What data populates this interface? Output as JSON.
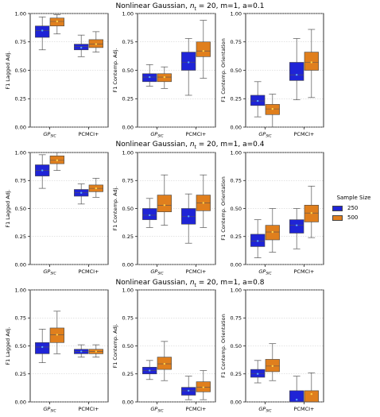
{
  "legend": {
    "title": "Sample Size",
    "items": [
      {
        "label": "250",
        "color": "#1f24d6"
      },
      {
        "label": "500",
        "color": "#e07f1d"
      }
    ]
  },
  "chart_data": {
    "type": "box",
    "series_names": [
      "250",
      "500"
    ],
    "series_colors": [
      "#1f24d6",
      "#e07f1d"
    ],
    "categories": [
      "GP_SIC",
      "PCMCI+"
    ],
    "category_labels": [
      {
        "main": "GP",
        "sub": "SIC"
      },
      {
        "main": "PCMCI+",
        "sub": ""
      }
    ],
    "y_ticks": [
      "0.00",
      "0.25",
      "0.50",
      "0.75",
      "1.00"
    ],
    "ylim": [
      0,
      1
    ],
    "grid": "horizontal dotted",
    "rows": [
      {
        "title_prefix": "Nonlinear Gaussian, ",
        "title_sub": "t",
        "title_suffix": " = 20, m=1, a=0.1",
        "panels": [
          {
            "ylabel": "F1 Lagged Adj.",
            "boxes": [
              {
                "category": "GP_SIC",
                "series": "250",
                "whislo": 0.68,
                "q1": 0.79,
                "med": 0.85,
                "mean": 0.85,
                "q3": 0.89,
                "whishi": 0.97
              },
              {
                "category": "GP_SIC",
                "series": "500",
                "whislo": 0.82,
                "q1": 0.89,
                "med": 0.93,
                "mean": 0.93,
                "q3": 0.96,
                "whishi": 0.99
              },
              {
                "category": "PCMCI+",
                "series": "250",
                "whislo": 0.62,
                "q1": 0.68,
                "med": 0.71,
                "mean": 0.7,
                "q3": 0.73,
                "whishi": 0.81
              },
              {
                "category": "PCMCI+",
                "series": "500",
                "whislo": 0.66,
                "q1": 0.7,
                "med": 0.73,
                "mean": 0.73,
                "q3": 0.77,
                "whishi": 0.84
              }
            ]
          },
          {
            "ylabel": "F1 Contemp. Adj.",
            "boxes": [
              {
                "category": "GP_SIC",
                "series": "250",
                "whislo": 0.36,
                "q1": 0.4,
                "med": 0.44,
                "mean": 0.44,
                "q3": 0.47,
                "whishi": 0.55
              },
              {
                "category": "GP_SIC",
                "series": "500",
                "whislo": 0.34,
                "q1": 0.4,
                "med": 0.44,
                "mean": 0.44,
                "q3": 0.47,
                "whishi": 0.53
              },
              {
                "category": "PCMCI+",
                "series": "250",
                "whislo": 0.28,
                "q1": 0.5,
                "med": 0.57,
                "mean": 0.57,
                "q3": 0.66,
                "whishi": 0.78
              },
              {
                "category": "PCMCI+",
                "series": "500",
                "whislo": 0.43,
                "q1": 0.62,
                "med": 0.67,
                "mean": 0.67,
                "q3": 0.75,
                "whishi": 0.94
              }
            ]
          },
          {
            "ylabel": "F1 Contemp. Orientation",
            "boxes": [
              {
                "category": "GP_SIC",
                "series": "250",
                "whislo": 0.09,
                "q1": 0.19,
                "med": 0.23,
                "mean": 0.23,
                "q3": 0.28,
                "whishi": 0.4
              },
              {
                "category": "GP_SIC",
                "series": "500",
                "whislo": 0.0,
                "q1": 0.11,
                "med": 0.16,
                "mean": 0.16,
                "q3": 0.2,
                "whishi": 0.29
              },
              {
                "category": "PCMCI+",
                "series": "250",
                "whislo": 0.24,
                "q1": 0.41,
                "med": 0.46,
                "mean": 0.46,
                "q3": 0.57,
                "whishi": 0.78
              },
              {
                "category": "PCMCI+",
                "series": "500",
                "whislo": 0.26,
                "q1": 0.5,
                "med": 0.57,
                "mean": 0.57,
                "q3": 0.66,
                "whishi": 0.86
              }
            ]
          }
        ]
      },
      {
        "title_prefix": "Nonlinear Gaussian, ",
        "title_sub": "t",
        "title_suffix": " = 20, m=1, a=0.4",
        "panels": [
          {
            "ylabel": "F1 Lagged Adj.",
            "boxes": [
              {
                "category": "GP_SIC",
                "series": "250",
                "whislo": 0.68,
                "q1": 0.79,
                "med": 0.84,
                "mean": 0.84,
                "q3": 0.89,
                "whishi": 0.98
              },
              {
                "category": "GP_SIC",
                "series": "500",
                "whislo": 0.84,
                "q1": 0.9,
                "med": 0.93,
                "mean": 0.93,
                "q3": 0.97,
                "whishi": 1.0
              },
              {
                "category": "PCMCI+",
                "series": "250",
                "whislo": 0.54,
                "q1": 0.61,
                "med": 0.64,
                "mean": 0.64,
                "q3": 0.67,
                "whishi": 0.72
              },
              {
                "category": "PCMCI+",
                "series": "500",
                "whislo": 0.6,
                "q1": 0.65,
                "med": 0.68,
                "mean": 0.68,
                "q3": 0.71,
                "whishi": 0.77
              }
            ]
          },
          {
            "ylabel": "F1 Contemp. Adj.",
            "boxes": [
              {
                "category": "GP_SIC",
                "series": "250",
                "whislo": 0.33,
                "q1": 0.4,
                "med": 0.44,
                "mean": 0.44,
                "q3": 0.5,
                "whishi": 0.59
              },
              {
                "category": "GP_SIC",
                "series": "500",
                "whislo": 0.35,
                "q1": 0.47,
                "med": 0.53,
                "mean": 0.53,
                "q3": 0.62,
                "whishi": 0.8
              },
              {
                "category": "PCMCI+",
                "series": "250",
                "whislo": 0.19,
                "q1": 0.36,
                "med": 0.43,
                "mean": 0.43,
                "q3": 0.5,
                "whishi": 0.63
              },
              {
                "category": "PCMCI+",
                "series": "500",
                "whislo": 0.33,
                "q1": 0.48,
                "med": 0.55,
                "mean": 0.55,
                "q3": 0.62,
                "whishi": 0.8
              }
            ]
          },
          {
            "ylabel": "F1 Contemp. Orientation",
            "boxes": [
              {
                "category": "GP_SIC",
                "series": "250",
                "whislo": 0.06,
                "q1": 0.16,
                "med": 0.21,
                "mean": 0.21,
                "q3": 0.27,
                "whishi": 0.4
              },
              {
                "category": "GP_SIC",
                "series": "500",
                "whislo": 0.11,
                "q1": 0.22,
                "med": 0.29,
                "mean": 0.29,
                "q3": 0.35,
                "whishi": 0.5
              },
              {
                "category": "PCMCI+",
                "series": "250",
                "whislo": 0.14,
                "q1": 0.28,
                "med": 0.35,
                "mean": 0.35,
                "q3": 0.4,
                "whishi": 0.5
              },
              {
                "category": "PCMCI+",
                "series": "500",
                "whislo": 0.24,
                "q1": 0.38,
                "med": 0.46,
                "mean": 0.46,
                "q3": 0.53,
                "whishi": 0.7
              }
            ]
          }
        ]
      },
      {
        "title_prefix": "Nonlinear Gaussian, ",
        "title_sub": "t",
        "title_suffix": " = 20, m=1, a=0.8",
        "panels": [
          {
            "ylabel": "F1 Lagged Adj.",
            "boxes": [
              {
                "category": "GP_SIC",
                "series": "250",
                "whislo": 0.35,
                "q1": 0.43,
                "med": 0.49,
                "mean": 0.49,
                "q3": 0.53,
                "whishi": 0.65
              },
              {
                "category": "GP_SIC",
                "series": "500",
                "whislo": 0.43,
                "q1": 0.53,
                "med": 0.6,
                "mean": 0.6,
                "q3": 0.66,
                "whishi": 0.81
              },
              {
                "category": "PCMCI+",
                "series": "250",
                "whislo": 0.4,
                "q1": 0.43,
                "med": 0.45,
                "mean": 0.45,
                "q3": 0.47,
                "whishi": 0.51
              },
              {
                "category": "PCMCI+",
                "series": "500",
                "whislo": 0.4,
                "q1": 0.43,
                "med": 0.45,
                "mean": 0.45,
                "q3": 0.47,
                "whishi": 0.51
              }
            ]
          },
          {
            "ylabel": "F1 Contemp. Adj.",
            "boxes": [
              {
                "category": "GP_SIC",
                "series": "250",
                "whislo": 0.2,
                "q1": 0.25,
                "med": 0.28,
                "mean": 0.28,
                "q3": 0.31,
                "whishi": 0.37
              },
              {
                "category": "GP_SIC",
                "series": "500",
                "whislo": 0.19,
                "q1": 0.29,
                "med": 0.34,
                "mean": 0.34,
                "q3": 0.4,
                "whishi": 0.54
              },
              {
                "category": "PCMCI+",
                "series": "250",
                "whislo": 0.02,
                "q1": 0.06,
                "med": 0.1,
                "mean": 0.1,
                "q3": 0.13,
                "whishi": 0.23
              },
              {
                "category": "PCMCI+",
                "series": "500",
                "whislo": 0.02,
                "q1": 0.09,
                "med": 0.13,
                "mean": 0.13,
                "q3": 0.18,
                "whishi": 0.28
              }
            ]
          },
          {
            "ylabel": "F1 Contemp. Orientation",
            "boxes": [
              {
                "category": "GP_SIC",
                "series": "250",
                "whislo": 0.17,
                "q1": 0.22,
                "med": 0.25,
                "mean": 0.25,
                "q3": 0.29,
                "whishi": 0.37
              },
              {
                "category": "GP_SIC",
                "series": "500",
                "whislo": 0.19,
                "q1": 0.27,
                "med": 0.32,
                "mean": 0.32,
                "q3": 0.38,
                "whishi": 0.52
              },
              {
                "category": "PCMCI+",
                "series": "250",
                "whislo": 0.0,
                "q1": 0.0,
                "med": 0.0,
                "mean": 0.02,
                "q3": 0.1,
                "whishi": 0.23
              },
              {
                "category": "PCMCI+",
                "series": "500",
                "whislo": 0.0,
                "q1": 0.0,
                "med": 0.0,
                "mean": 0.07,
                "q3": 0.1,
                "whishi": 0.26
              }
            ]
          }
        ]
      }
    ]
  }
}
